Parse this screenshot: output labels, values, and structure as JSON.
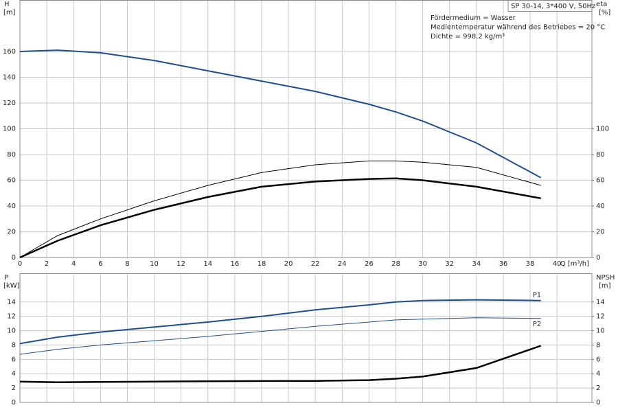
{
  "chart_data": [
    {
      "type": "line",
      "title": "SP 30-14, 3*400 V, 50Hz",
      "annotations": [
        "Fördermedium = Wasser",
        "Medientemperatur während des Betriebes = 20 °C",
        "Dichte = 998.2 kg/m³"
      ],
      "y_label": "H",
      "y_unit": "[m]",
      "y2_label": "eta",
      "y2_unit": "[%]",
      "x_label": "Q [m³/h]",
      "x": [
        0,
        2.8,
        6,
        10,
        14,
        18,
        22,
        26,
        28,
        30,
        34,
        38.8
      ],
      "xlim": [
        0,
        42.6
      ],
      "xticks": [
        0,
        2,
        4,
        6,
        8,
        10,
        12,
        14,
        16,
        18,
        20,
        22,
        24,
        26,
        28,
        30,
        32,
        34,
        36,
        38,
        40
      ],
      "ylim": [
        0,
        200
      ],
      "yticks": [
        0,
        20,
        40,
        60,
        80,
        100,
        120,
        140,
        160
      ],
      "y2lim": [
        0,
        200
      ],
      "y2ticks": [
        0,
        20,
        40,
        60,
        80,
        100
      ],
      "grid": true,
      "series": [
        {
          "color": "#1f4e8c",
          "width": 2,
          "values": [
            160,
            161,
            159,
            153,
            145,
            137,
            129,
            119,
            113,
            106,
            89,
            62
          ]
        },
        {
          "color": "#000000",
          "width": 1,
          "axis": "y2",
          "values": [
            0,
            17,
            30,
            44,
            56,
            66,
            72,
            75,
            75,
            74,
            70,
            56
          ]
        },
        {
          "color": "#000000",
          "width": 2.5,
          "axis": "y2",
          "values": [
            0,
            13,
            25,
            37,
            47,
            55,
            59,
            61,
            61.5,
            60,
            55,
            46
          ]
        }
      ]
    },
    {
      "type": "line",
      "y_label": "P",
      "y_unit": "[kW]",
      "y2_label": "NPSH",
      "y2_unit": "[m]",
      "x": [
        0,
        2.8,
        6,
        10,
        14,
        18,
        22,
        26,
        28,
        30,
        34,
        38.8
      ],
      "xlim": [
        0,
        42.6
      ],
      "xticks": [
        0,
        2,
        4,
        6,
        8,
        10,
        12,
        14,
        16,
        18,
        20,
        22,
        24,
        26,
        28,
        30,
        32,
        34,
        36,
        38,
        40
      ],
      "ylim": [
        0,
        18
      ],
      "yticks": [
        0,
        2,
        4,
        6,
        8,
        10,
        12,
        14
      ],
      "y2lim": [
        0,
        18
      ],
      "y2ticks": [
        0,
        2,
        4,
        6,
        8,
        10,
        12,
        14
      ],
      "grid": true,
      "series": [
        {
          "name": "P1",
          "color": "#1f4e8c",
          "width": 2,
          "values": [
            8.2,
            9.1,
            9.8,
            10.5,
            11.2,
            12.0,
            12.9,
            13.6,
            14.0,
            14.2,
            14.3,
            14.2
          ]
        },
        {
          "name": "P2",
          "color": "#1f4e8c",
          "width": 1,
          "values": [
            6.7,
            7.4,
            8.0,
            8.6,
            9.2,
            9.9,
            10.6,
            11.2,
            11.5,
            11.6,
            11.8,
            11.7
          ]
        },
        {
          "color": "#000000",
          "width": 2.5,
          "axis": "y2",
          "values": [
            2.9,
            2.8,
            2.85,
            2.9,
            2.95,
            2.98,
            3.0,
            3.1,
            3.3,
            3.6,
            4.8,
            7.9
          ]
        }
      ]
    }
  ]
}
